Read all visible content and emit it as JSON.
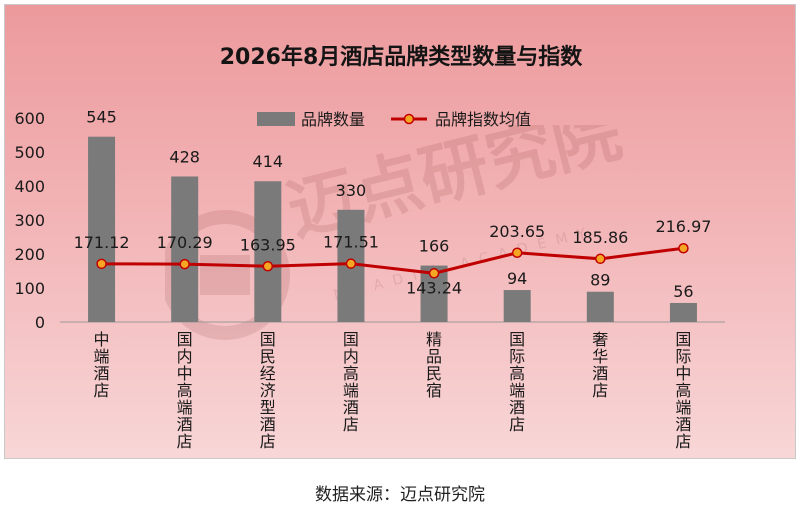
{
  "chart_data": {
    "type": "bar",
    "title": "2026年8月酒店品牌类型数量与指数",
    "categories": [
      "中端酒店",
      "国内中高端酒店",
      "国民经济型酒店",
      "国内高端酒店",
      "精品民宿",
      "国际高端酒店",
      "奢华酒店",
      "国际中高端酒店"
    ],
    "series": [
      {
        "name": "品牌数量",
        "kind": "bar",
        "color": "#7a7a7a",
        "values": [
          545,
          428,
          414,
          330,
          166,
          94,
          89,
          56
        ],
        "labels": [
          "545",
          "428",
          "414",
          "330",
          "166",
          "94",
          "89",
          "56"
        ]
      },
      {
        "name": "品牌指数均值",
        "kind": "line",
        "color": "#c00000",
        "marker_fill": "#f5a623",
        "values": [
          171.12,
          170.29,
          163.95,
          171.51,
          143.24,
          203.65,
          185.86,
          216.97
        ],
        "labels": [
          "171.12",
          "170.29",
          "163.95",
          "171.51",
          "143.24",
          "203.65",
          "185.86",
          "216.97"
        ]
      }
    ],
    "ylim": [
      0,
      600
    ],
    "yticks": [
      "0",
      "100",
      "200",
      "300",
      "400",
      "500",
      "600"
    ],
    "legend_position": "top-center",
    "grid": false
  },
  "watermark": {
    "main": "迈点研究院",
    "sub": "MEADIN ACADEMY"
  },
  "source": "数据来源：迈点研究院"
}
